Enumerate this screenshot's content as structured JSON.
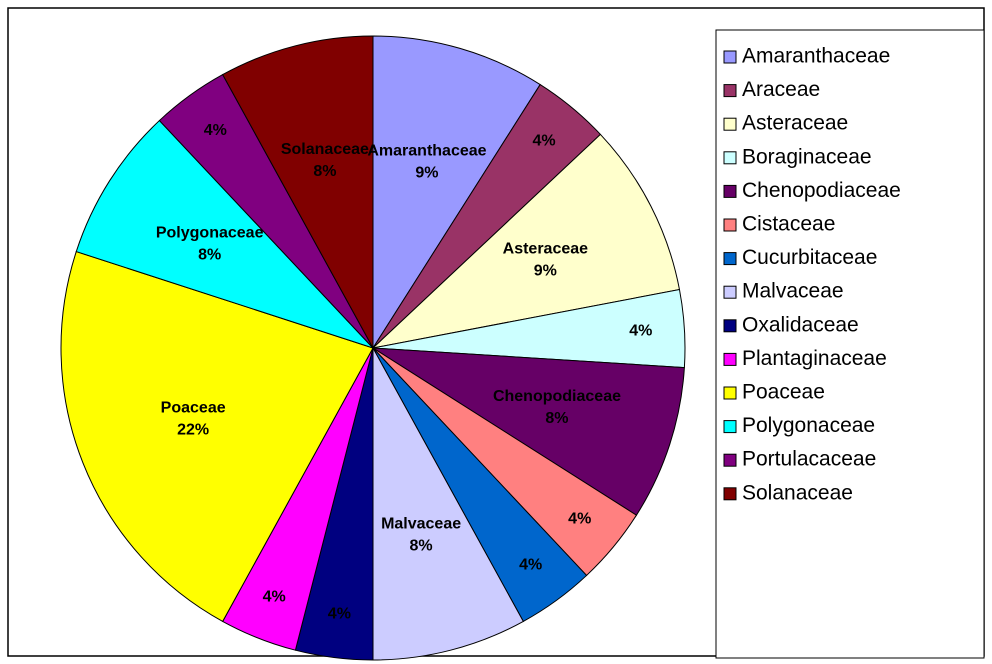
{
  "chart_data": {
    "type": "pie",
    "categories": [
      "Amaranthaceae",
      "Araceae",
      "Asteraceae",
      "Boraginaceae",
      "Chenopodiaceae",
      "Cistaceae",
      "Cucurbitaceae",
      "Malvaceae",
      "Oxalidaceae",
      "Plantaginaceae",
      "Poaceae",
      "Polygonaceae",
      "Portulacaceae",
      "Solanaceae"
    ],
    "values": [
      9,
      4,
      9,
      4,
      8,
      4,
      4,
      8,
      4,
      4,
      22,
      8,
      4,
      8
    ],
    "value_labels": [
      "9%",
      "4%",
      "9%",
      "4%",
      "8%",
      "4%",
      "4%",
      "8%",
      "4%",
      "4%",
      "22%",
      "8%",
      "4%",
      "8%"
    ],
    "colors": [
      "#9999ff",
      "#993366",
      "#ffffcc",
      "#ccffff",
      "#660066",
      "#ff8080",
      "#0066cc",
      "#ccccff",
      "#000080",
      "#ff00ff",
      "#ffff00",
      "#00ffff",
      "#800080",
      "#800000"
    ],
    "legend": "right"
  }
}
